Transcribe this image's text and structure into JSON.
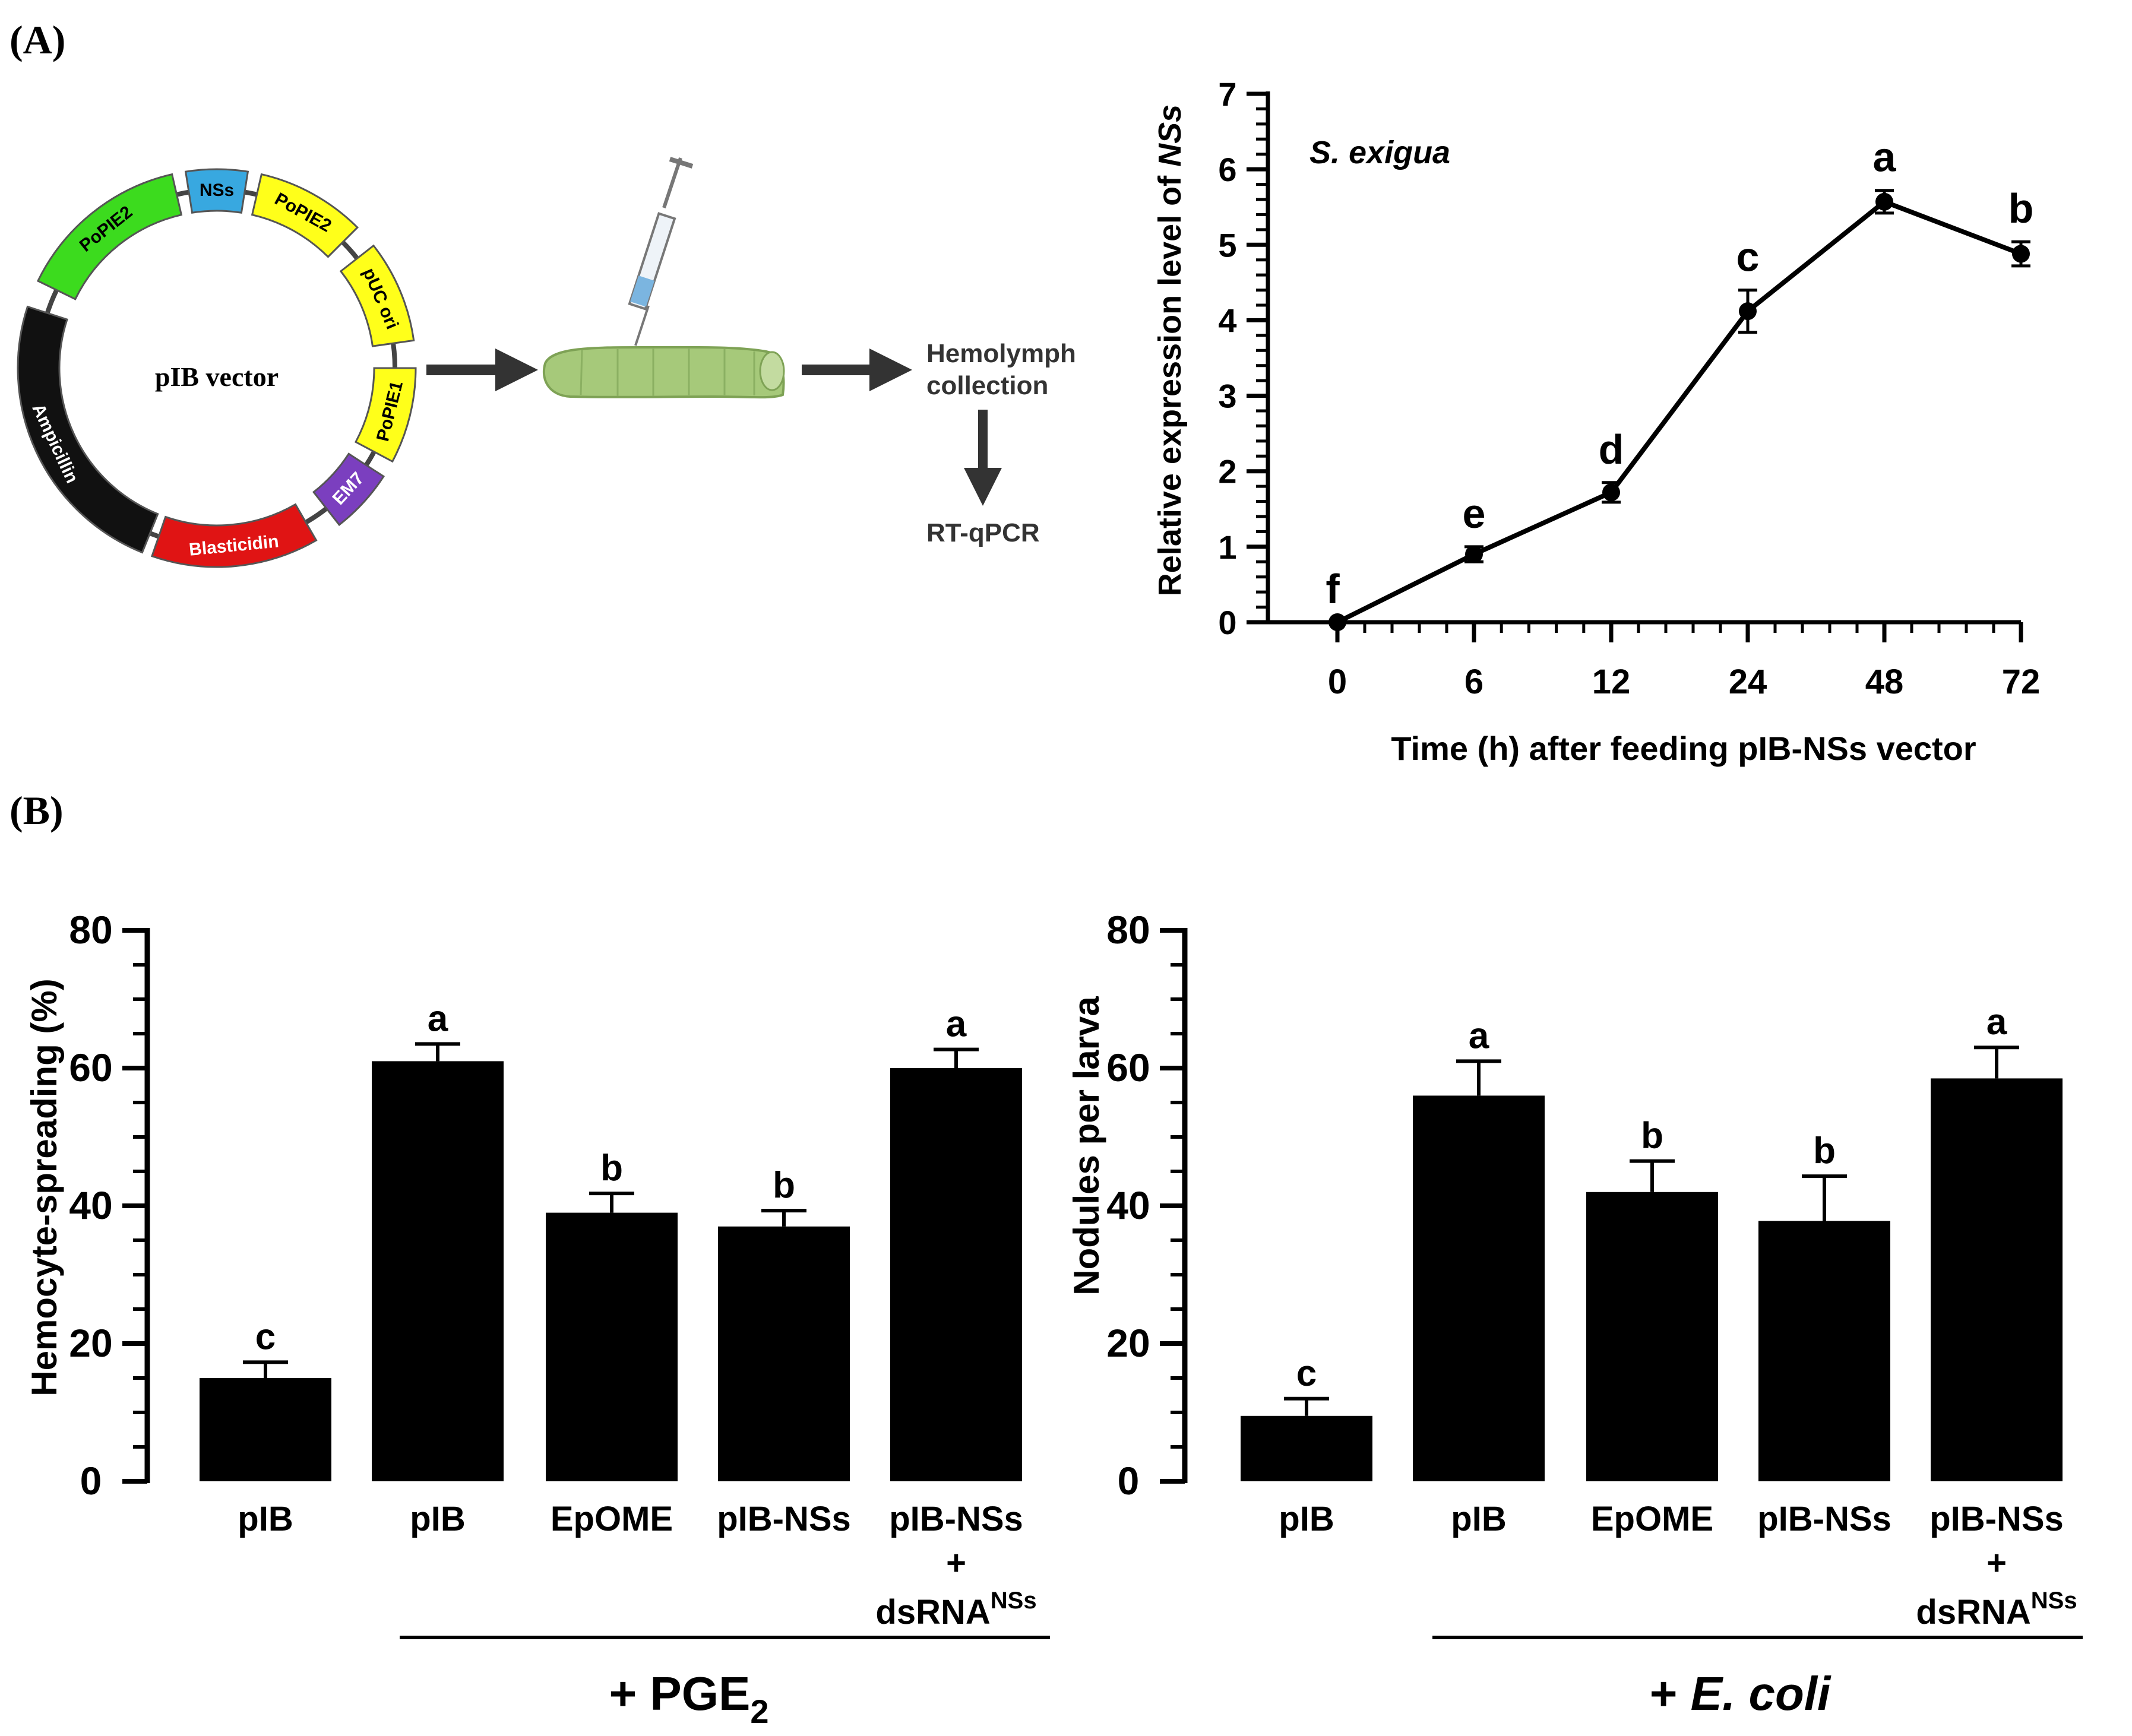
{
  "panel_labels": {
    "a": "(A)",
    "b": "(B)"
  },
  "diagram": {
    "vector_name": "pIB vector",
    "segments": [
      "NSs",
      "PoPIE2",
      "pUC ori",
      "PoPIE1",
      "EM7",
      "Blasticidin",
      "Ampicillin",
      "PoPIE2"
    ],
    "step_hemolymph": [
      "Hemolymph",
      "collection"
    ],
    "step_rtqpcr": "RT-qPCR",
    "colors": {
      "nss": "#38a8e0",
      "yellow": "#ffff1a",
      "em7": "#7b3fbf",
      "blasticidin": "#e01414",
      "ampicillin": "#111111",
      "poPIE2_green": "#3cdb1e"
    }
  },
  "chart_data": [
    {
      "type": "line",
      "title": "",
      "annotation": "S. exigua",
      "ylabel_prefix": "Relative expression level of ",
      "ylabel_italic": "NSs",
      "xlabel": "Time (h) after feeding pIB-NSs vector",
      "categories": [
        "0",
        "6",
        "12",
        "24",
        "48",
        "72"
      ],
      "values": [
        0.0,
        0.9,
        1.72,
        4.12,
        5.57,
        4.88
      ],
      "errors": [
        0.0,
        0.1,
        0.13,
        0.28,
        0.15,
        0.16
      ],
      "letters": [
        "f",
        "e",
        "d",
        "c",
        "a",
        "b"
      ],
      "yticks": [
        "0",
        "1",
        "2",
        "3",
        "4",
        "5",
        "6",
        "7"
      ],
      "ylim": [
        0,
        7
      ]
    },
    {
      "type": "bar",
      "ylabel": "Hemocyte-spreading (%)",
      "categories": [
        "pIB",
        "pIB",
        "EpOME",
        "pIB-NSs",
        "pIB-NSs"
      ],
      "plus_sign": "+",
      "ds_base": "dsRNA",
      "ds_sup": "NSs",
      "values": [
        15,
        61,
        39,
        37,
        60
      ],
      "errors": [
        2.3,
        2.5,
        2.8,
        2.3,
        2.7
      ],
      "letters": [
        "c",
        "a",
        "b",
        "b",
        "a"
      ],
      "yticks": [
        "0",
        "20",
        "40",
        "60",
        "80"
      ],
      "ylim": [
        0,
        80
      ],
      "group_label": "+ PGE",
      "group_sub": "2"
    },
    {
      "type": "bar",
      "ylabel": "Nodules per larva",
      "categories": [
        "pIB",
        "pIB",
        "EpOME",
        "pIB-NSs",
        "pIB-NSs"
      ],
      "plus_sign": "+",
      "ds_base": "dsRNA",
      "ds_sup": "NSs",
      "values": [
        9.5,
        56,
        42,
        37.8,
        58.5
      ],
      "errors": [
        2.5,
        5,
        4.5,
        6.5,
        4.5
      ],
      "letters": [
        "c",
        "a",
        "b",
        "b",
        "a"
      ],
      "yticks": [
        "0",
        "20",
        "40",
        "60",
        "80"
      ],
      "ylim": [
        0,
        80
      ],
      "group_label": "+ ",
      "group_italic": "E. coli"
    }
  ]
}
